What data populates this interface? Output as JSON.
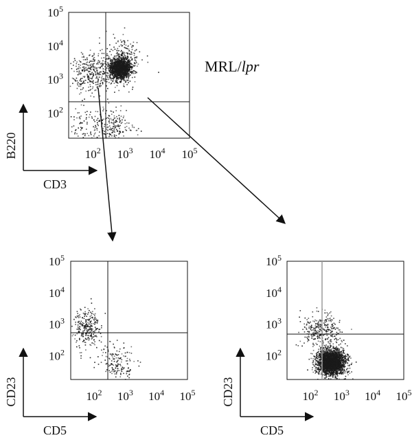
{
  "figure": {
    "strain_prefix": "MRL/",
    "strain_suffix": "lpr"
  },
  "chart_data": [
    {
      "type": "scatter",
      "panel": "top",
      "scale": "log",
      "xlabel": "CD3",
      "ylabel": "B220",
      "x_ticks": [
        "10",
        "10",
        "10",
        "10"
      ],
      "x_tick_exponents": [
        "2",
        "3",
        "4",
        "5"
      ],
      "y_ticks": [
        "10",
        "10",
        "10",
        "10"
      ],
      "y_tick_exponents": [
        "2",
        "3",
        "4",
        "5"
      ],
      "xlim": [
        10,
        100000
      ],
      "ylim": [
        10,
        100000
      ],
      "gate": {
        "x": 250,
        "y": 160
      },
      "population_clusters": [
        {
          "cx": 700,
          "cy": 2200,
          "sx": 0.17,
          "sy": 0.17,
          "n": 1500
        },
        {
          "cx": 90,
          "cy": 1500,
          "sx": 0.35,
          "sy": 0.3,
          "n": 350
        },
        {
          "cx": 400,
          "cy": 40,
          "sx": 0.28,
          "sy": 0.3,
          "n": 220
        },
        {
          "cx": 50,
          "cy": 40,
          "sx": 0.25,
          "sy": 0.3,
          "n": 80
        },
        {
          "cx": 800,
          "cy": 5000,
          "sx": 0.3,
          "sy": 0.35,
          "n": 200
        }
      ],
      "marker_color": "#1a1a1a"
    },
    {
      "type": "scatter",
      "panel": "bottom-left",
      "scale": "log",
      "xlabel": "CD5",
      "ylabel": "CD23",
      "x_ticks": [
        "10",
        "10",
        "10",
        "10"
      ],
      "x_tick_exponents": [
        "2",
        "3",
        "4",
        "5"
      ],
      "y_ticks": [
        "10",
        "10",
        "10",
        "10"
      ],
      "y_tick_exponents": [
        "2",
        "3",
        "4",
        "5"
      ],
      "xlim": [
        10,
        100000
      ],
      "ylim": [
        10,
        100000
      ],
      "gate": {
        "x": 250,
        "y": 350
      },
      "population_clusters": [
        {
          "cx": 55,
          "cy": 900,
          "sx": 0.2,
          "sy": 0.3,
          "n": 260
        },
        {
          "cx": 650,
          "cy": 55,
          "sx": 0.25,
          "sy": 0.3,
          "n": 140
        },
        {
          "cx": 200,
          "cy": 120,
          "sx": 0.3,
          "sy": 0.3,
          "n": 40
        }
      ],
      "marker_color": "#1a1a1a"
    },
    {
      "type": "scatter",
      "panel": "bottom-right",
      "scale": "log",
      "xlabel": "CD5",
      "ylabel": "CD23",
      "x_ticks": [
        "10",
        "10",
        "10",
        "10"
      ],
      "x_tick_exponents": [
        "2",
        "3",
        "4",
        "5"
      ],
      "y_ticks": [
        "10",
        "10",
        "10",
        "10"
      ],
      "y_tick_exponents": [
        "2",
        "3",
        "4",
        "5"
      ],
      "xlim": [
        10,
        100000
      ],
      "ylim": [
        10,
        100000
      ],
      "gate": {
        "x": 250,
        "y": 350
      },
      "population_clusters": [
        {
          "cx": 450,
          "cy": 65,
          "sx": 0.22,
          "sy": 0.2,
          "n": 2600
        },
        {
          "cx": 220,
          "cy": 700,
          "sx": 0.32,
          "sy": 0.25,
          "n": 300
        }
      ],
      "marker_color": "#1a1a1a"
    }
  ]
}
